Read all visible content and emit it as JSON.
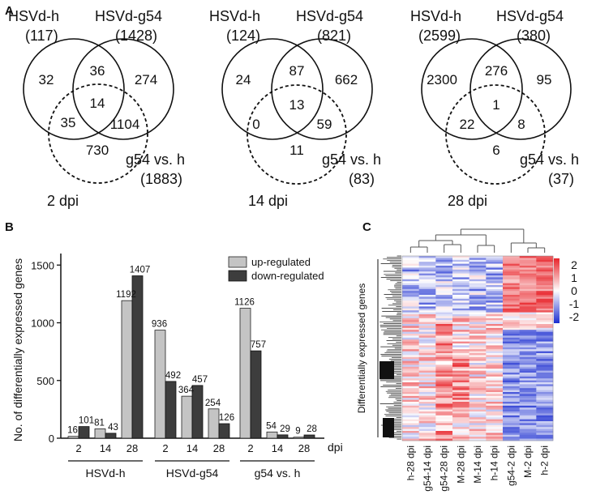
{
  "panel_letters": {
    "a": "A",
    "b": "B",
    "c": "C"
  },
  "panel_a": {
    "venns": [
      {
        "set_h": "HSVd-h",
        "count_h": "(117)",
        "set_g": "HSVd-g54",
        "count_g": "(1428)",
        "set_cmp": "g54 vs. h",
        "count_cmp": "(1883)",
        "regions": {
          "h_only": "32",
          "h_g": "36",
          "g_only": "274",
          "all": "14",
          "h_cmp": "35",
          "g_cmp": "1104",
          "cmp_only": "730"
        },
        "dpi": "2 dpi"
      },
      {
        "set_h": "HSVd-h",
        "count_h": "(124)",
        "set_g": "HSVd-g54",
        "count_g": "(821)",
        "set_cmp": "g54 vs. h",
        "count_cmp": "(83)",
        "regions": {
          "h_only": "24",
          "h_g": "87",
          "g_only": "662",
          "all": "13",
          "h_cmp": "0",
          "g_cmp": "59",
          "cmp_only": "11"
        },
        "dpi": "14 dpi"
      },
      {
        "set_h": "HSVd-h",
        "count_h": "(2599)",
        "set_g": "HSVd-g54",
        "count_g": "(380)",
        "set_cmp": "g54 vs. h",
        "count_cmp": "(37)",
        "regions": {
          "h_only": "2300",
          "h_g": "276",
          "g_only": "95",
          "all": "1",
          "h_cmp": "22",
          "g_cmp": "8",
          "cmp_only": "6"
        },
        "dpi": "28 dpi"
      }
    ]
  },
  "chart_data": {
    "type": "bar",
    "ylabel": "No. of differentially expressed genes",
    "xlabel": "dpi",
    "ylim": [
      0,
      1600
    ],
    "yticks": [
      "0",
      "500",
      "1000",
      "1500"
    ],
    "ytick_values": [
      0,
      500,
      1000,
      1500
    ],
    "groups": [
      {
        "name": "HSVd-h",
        "categories": [
          "2",
          "14",
          "28"
        ],
        "up": [
          16,
          81,
          1192
        ],
        "down": [
          101,
          43,
          1407
        ]
      },
      {
        "name": "HSVd-g54",
        "categories": [
          "2",
          "14",
          "28"
        ],
        "up": [
          936,
          364,
          254
        ],
        "down": [
          492,
          457,
          126
        ]
      },
      {
        "name": "g54 vs. h",
        "categories": [
          "2",
          "14",
          "28"
        ],
        "up": [
          1126,
          54,
          9
        ],
        "down": [
          757,
          29,
          28
        ]
      }
    ],
    "legend": {
      "up": "up-regulated",
      "down": "down-regulated"
    },
    "colors": {
      "up": "#c4c4c4",
      "down": "#3d3d3d"
    }
  },
  "panel_c": {
    "ylabel": "Differentially expressed genes",
    "columns": [
      "h-28 dpi",
      "g54-14 dpi",
      "g54-28 dpi",
      "M-28 dpi",
      "M-14 dpi",
      "h-14 dpi",
      "g54-2 dpi",
      "M-2 dpi",
      "h-2 dpi"
    ],
    "scale_labels": [
      "2",
      "1",
      "0",
      "-1",
      "-2"
    ],
    "colors": {
      "high": "#e8242a",
      "mid": "#ffffff",
      "low": "#1c2ed0"
    }
  }
}
